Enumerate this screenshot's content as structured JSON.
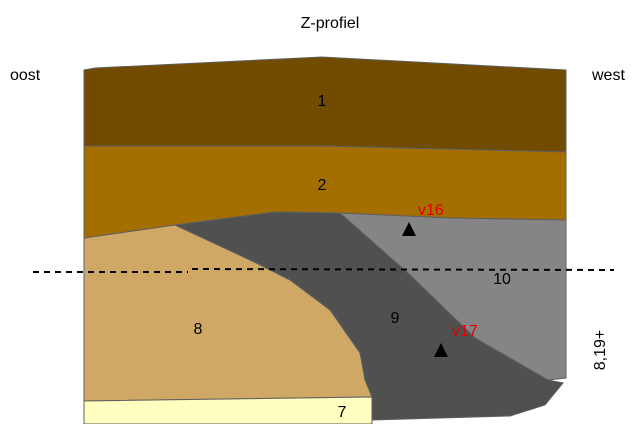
{
  "title": "Z-profiel",
  "orientation": {
    "left": "oost",
    "right": "west"
  },
  "depth_label": "8,19+",
  "colors": {
    "layer_1": "#714c00",
    "layer_2": "#a56f00",
    "layer_7": "#ffffc0",
    "layer_8": "#cfa866",
    "layer_9": "#505050",
    "layer_10": "#858585",
    "find_label": "#e00000",
    "marker": "#000000"
  },
  "layers": [
    {
      "id": "1",
      "label": "1"
    },
    {
      "id": "2",
      "label": "2"
    },
    {
      "id": "7",
      "label": "7"
    },
    {
      "id": "8",
      "label": "8"
    },
    {
      "id": "9",
      "label": "9"
    },
    {
      "id": "10",
      "label": "10"
    }
  ],
  "finds": [
    {
      "label": "v16",
      "marker": "triangle"
    },
    {
      "label": "v17",
      "marker": "triangle"
    }
  ],
  "reference_line": "dashed"
}
